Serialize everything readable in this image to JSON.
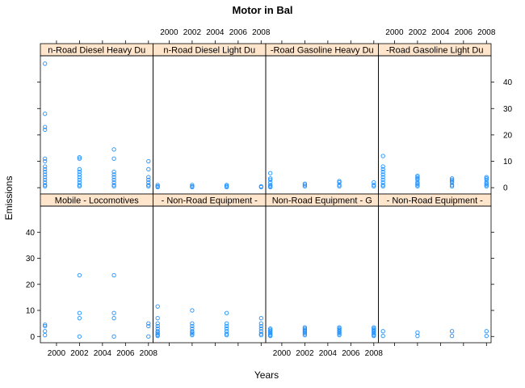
{
  "chart_data": {
    "type": "scatter",
    "title": "Motor in Bal",
    "xlabel": "Years",
    "ylabel": "Emissions",
    "xlim": [
      1998.6,
      2008.4
    ],
    "ylim": [
      -2.4,
      50
    ],
    "x_ticks": [
      2000,
      2002,
      2004,
      2006,
      2008
    ],
    "y_ticks": [
      0,
      10,
      20,
      30,
      40
    ],
    "grid": false,
    "point_color": "#1E90FF",
    "strip_color": "#FFE5CC",
    "layout": {
      "columns": 4,
      "rows": 2
    },
    "panels": [
      {
        "name": "Mobile - Non-Road Diesel Heavy Duty",
        "strip_label": "n-Road Diesel Heavy Du",
        "series": [
          {
            "x": 1999,
            "values": [
              47,
              28,
              23,
              22,
              11,
              10,
              8,
              7,
              6,
              5,
              4,
              3,
              2,
              1,
              0.5
            ]
          },
          {
            "x": 2002,
            "values": [
              11.5,
              11,
              7,
              6,
              5,
              4,
              3,
              2,
              1,
              0.5
            ]
          },
          {
            "x": 2005,
            "values": [
              14.5,
              11,
              6,
              5,
              4,
              3,
              2,
              1,
              0.5
            ]
          },
          {
            "x": 2008,
            "values": [
              10,
              7,
              4,
              3,
              2,
              1,
              0.5
            ]
          }
        ]
      },
      {
        "name": "Mobile - Non-Road Diesel Light Duty",
        "strip_label": "n-Road Diesel Light Du",
        "series": [
          {
            "x": 1999,
            "values": [
              1,
              0.5,
              0.2
            ]
          },
          {
            "x": 2002,
            "values": [
              1,
              0.5,
              0.2
            ]
          },
          {
            "x": 2005,
            "values": [
              1,
              0.6,
              0.2
            ]
          },
          {
            "x": 2008,
            "values": [
              0.5,
              0.2
            ]
          }
        ]
      },
      {
        "name": "Mobile - Non-Road Gasoline Heavy Duty",
        "strip_label": "-Road Gasoline Heavy Du",
        "series": [
          {
            "x": 1999,
            "values": [
              5.5,
              3.5,
              3,
              2,
              1,
              0.5,
              0.2
            ]
          },
          {
            "x": 2002,
            "values": [
              1.5,
              1,
              0.5
            ]
          },
          {
            "x": 2005,
            "values": [
              2.5,
              2,
              1,
              0.5
            ]
          },
          {
            "x": 2008,
            "values": [
              2,
              1,
              0.5
            ]
          }
        ]
      },
      {
        "name": "Mobile - Non-Road Gasoline Light Duty",
        "strip_label": "-Road Gasoline Light Du",
        "series": [
          {
            "x": 1999,
            "values": [
              12,
              8,
              7,
              6,
              5,
              4,
              3,
              2,
              1,
              0.5
            ]
          },
          {
            "x": 2002,
            "values": [
              4.5,
              4,
              3.5,
              3,
              2,
              1.5,
              1,
              0.5
            ]
          },
          {
            "x": 2005,
            "values": [
              3.5,
              3,
              2.5,
              2,
              1,
              0.5
            ]
          },
          {
            "x": 2008,
            "values": [
              4,
              3.5,
              3,
              2,
              1.5,
              1,
              0.5
            ]
          }
        ]
      },
      {
        "name": "Mobile - Locomotives",
        "strip_label": "Mobile - Locomotives",
        "series": [
          {
            "x": 1999,
            "values": [
              4.5,
              4,
              2,
              0.5
            ]
          },
          {
            "x": 2002,
            "values": [
              23.5,
              9,
              7,
              0
            ]
          },
          {
            "x": 2005,
            "values": [
              23.5,
              9,
              7,
              0
            ]
          },
          {
            "x": 2008,
            "values": [
              5,
              4,
              0
            ]
          }
        ]
      },
      {
        "name": "Mobile - Non-Road Equipment - Diesel",
        "strip_label": "- Non-Road Equipment -",
        "series": [
          {
            "x": 1999,
            "values": [
              11.5,
              7,
              5,
              4,
              3,
              2,
              1.5,
              1,
              0.5,
              0.2
            ]
          },
          {
            "x": 2002,
            "values": [
              10,
              5,
              4,
              3,
              2,
              1.5,
              1,
              0.5
            ]
          },
          {
            "x": 2005,
            "values": [
              9,
              5,
              4,
              3,
              2,
              1,
              0.5
            ]
          },
          {
            "x": 2008,
            "values": [
              7,
              5,
              4,
              3,
              2,
              1,
              0.5
            ]
          }
        ]
      },
      {
        "name": "Mobile - Non-Road Equipment - Gasoline",
        "strip_label": "Non-Road Equipment - G",
        "series": [
          {
            "x": 1999,
            "values": [
              3,
              2.5,
              2,
              1.5,
              1,
              0.5,
              0.2
            ]
          },
          {
            "x": 2002,
            "values": [
              3.5,
              3,
              2.5,
              2,
              1.5,
              1,
              0.5
            ]
          },
          {
            "x": 2005,
            "values": [
              3.5,
              3,
              2.5,
              2,
              1.5,
              1,
              0.5
            ]
          },
          {
            "x": 2008,
            "values": [
              3.5,
              3,
              2.5,
              2,
              1.5,
              1,
              0.5,
              0.2
            ]
          }
        ]
      },
      {
        "name": "Mobile - Non-Road Equipment - Other",
        "strip_label": "- Non-Road Equipment -",
        "series": [
          {
            "x": 1999,
            "values": [
              2,
              0.2
            ]
          },
          {
            "x": 2002,
            "values": [
              1.5,
              0.2
            ]
          },
          {
            "x": 2005,
            "values": [
              2,
              0.2
            ]
          },
          {
            "x": 2008,
            "values": [
              2,
              0.2
            ]
          }
        ]
      }
    ]
  }
}
